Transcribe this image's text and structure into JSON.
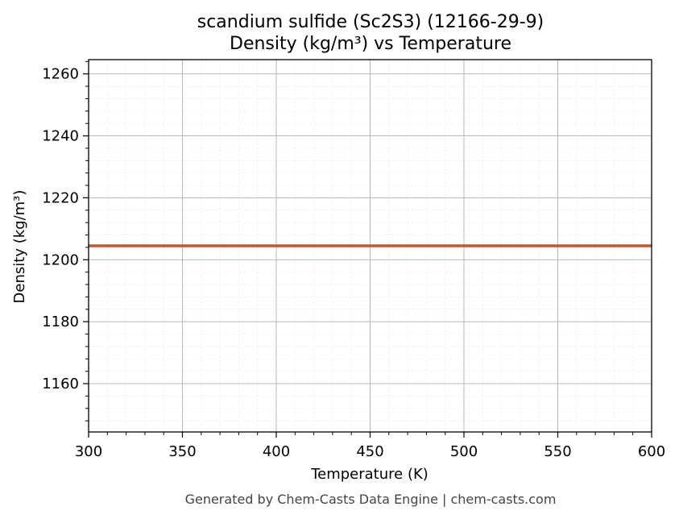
{
  "chart_data": {
    "type": "line",
    "title_line1": "scandium sulfide (Sc2S3) (12166-29-9)",
    "title_line2": "Density (kg/m³) vs Temperature",
    "xlabel": "Temperature (K)",
    "ylabel": "Density (kg/m³)",
    "xlim": [
      300,
      600
    ],
    "ylim": [
      1144.4,
      1264.6
    ],
    "xticks": [
      300,
      350,
      400,
      450,
      500,
      550,
      600
    ],
    "yticks": [
      1160,
      1180,
      1200,
      1220,
      1240,
      1260
    ],
    "grid": true,
    "series": [
      {
        "color": "#c8552b",
        "x": [
          300,
          600
        ],
        "y": [
          1204.5,
          1204.5
        ]
      }
    ]
  },
  "footer": "Generated by Chem-Casts Data Engine | chem-casts.com"
}
